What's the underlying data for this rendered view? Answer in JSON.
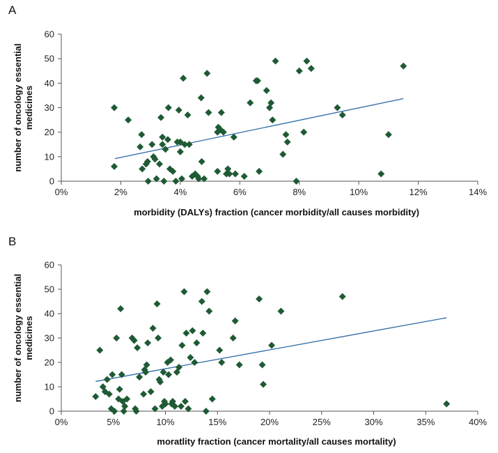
{
  "chart_data": [
    {
      "panel": "A",
      "type": "scatter",
      "xlabel": "morbidity (DALYs) fraction (cancer morbidity/all causes morbidity)",
      "ylabel": [
        "number of oncology essential",
        "medicines"
      ],
      "xlim": [
        0,
        0.14
      ],
      "ylim": [
        0,
        60
      ],
      "xticks": [
        0,
        0.02,
        0.04,
        0.06,
        0.08,
        0.1,
        0.12,
        0.14
      ],
      "xtick_labels": [
        "0%",
        "2%",
        "4%",
        "6%",
        "8%",
        "10%",
        "12%",
        "14%"
      ],
      "yticks": [
        0,
        10,
        20,
        30,
        40,
        50,
        60
      ],
      "ytick_labels": [
        "0",
        "10",
        "20",
        "30",
        "40",
        "50",
        "60"
      ],
      "marker_color": "#1f5a34",
      "trendline_color": "#2d6aa6",
      "trendline": {
        "x": [
          0.018,
          0.115
        ],
        "y": [
          9.2,
          33.7
        ]
      },
      "points": [
        [
          0.0178,
          30
        ],
        [
          0.0178,
          6
        ],
        [
          0.0225,
          25
        ],
        [
          0.0265,
          14
        ],
        [
          0.027,
          19
        ],
        [
          0.0272,
          5
        ],
        [
          0.0285,
          7
        ],
        [
          0.029,
          8
        ],
        [
          0.0292,
          0
        ],
        [
          0.0305,
          15
        ],
        [
          0.031,
          10
        ],
        [
          0.0315,
          9
        ],
        [
          0.032,
          1
        ],
        [
          0.033,
          7
        ],
        [
          0.0335,
          26
        ],
        [
          0.034,
          18
        ],
        [
          0.034,
          15
        ],
        [
          0.0345,
          0
        ],
        [
          0.035,
          13
        ],
        [
          0.0358,
          17
        ],
        [
          0.036,
          30
        ],
        [
          0.0365,
          5
        ],
        [
          0.0375,
          4
        ],
        [
          0.0385,
          0
        ],
        [
          0.039,
          16
        ],
        [
          0.0395,
          29
        ],
        [
          0.04,
          12
        ],
        [
          0.04,
          16
        ],
        [
          0.0405,
          1
        ],
        [
          0.041,
          42
        ],
        [
          0.0415,
          15
        ],
        [
          0.0425,
          27
        ],
        [
          0.043,
          15
        ],
        [
          0.044,
          2
        ],
        [
          0.045,
          3
        ],
        [
          0.0458,
          2
        ],
        [
          0.0462,
          1
        ],
        [
          0.047,
          34
        ],
        [
          0.0472,
          8
        ],
        [
          0.048,
          1
        ],
        [
          0.049,
          44
        ],
        [
          0.0495,
          28
        ],
        [
          0.0525,
          20
        ],
        [
          0.0528,
          22
        ],
        [
          0.0525,
          4
        ],
        [
          0.0535,
          21
        ],
        [
          0.0538,
          28
        ],
        [
          0.0545,
          20
        ],
        [
          0.0555,
          3
        ],
        [
          0.056,
          5
        ],
        [
          0.0565,
          3
        ],
        [
          0.058,
          18
        ],
        [
          0.0585,
          3
        ],
        [
          0.0615,
          2
        ],
        [
          0.0635,
          32
        ],
        [
          0.0655,
          41
        ],
        [
          0.066,
          41
        ],
        [
          0.0665,
          4
        ],
        [
          0.069,
          37
        ],
        [
          0.07,
          30
        ],
        [
          0.0705,
          32
        ],
        [
          0.071,
          25
        ],
        [
          0.072,
          49
        ],
        [
          0.0745,
          11
        ],
        [
          0.0755,
          19
        ],
        [
          0.076,
          16
        ],
        [
          0.079,
          0
        ],
        [
          0.08,
          45
        ],
        [
          0.0815,
          20
        ],
        [
          0.0825,
          49
        ],
        [
          0.084,
          46
        ],
        [
          0.0928,
          30
        ],
        [
          0.0945,
          27
        ],
        [
          0.1075,
          3
        ],
        [
          0.11,
          19
        ],
        [
          0.115,
          47
        ]
      ]
    },
    {
      "panel": "B",
      "type": "scatter",
      "xlabel": "moratlity fraction (cancer mortality/all causes mortality)",
      "ylabel": [
        "number of oncology essential",
        "medicines"
      ],
      "xlim": [
        0,
        0.4
      ],
      "ylim": [
        0,
        60
      ],
      "xticks": [
        0,
        0.05,
        0.1,
        0.15,
        0.2,
        0.25,
        0.3,
        0.35,
        0.4
      ],
      "xtick_labels": [
        "0%",
        "5%",
        "10%",
        "15%",
        "20%",
        "25%",
        "30%",
        "35%",
        "40%"
      ],
      "yticks": [
        0,
        10,
        20,
        30,
        40,
        50,
        60
      ],
      "ytick_labels": [
        "0",
        "10",
        "20",
        "30",
        "40",
        "50",
        "60"
      ],
      "marker_color": "#1f5a34",
      "trendline_color": "#2d6aa6",
      "trendline": {
        "x": [
          0.033,
          0.37
        ],
        "y": [
          12.2,
          38.3
        ]
      },
      "points": [
        [
          0.033,
          6
        ],
        [
          0.037,
          25
        ],
        [
          0.04,
          10
        ],
        [
          0.042,
          8
        ],
        [
          0.044,
          13
        ],
        [
          0.046,
          7
        ],
        [
          0.048,
          1
        ],
        [
          0.049,
          15
        ],
        [
          0.051,
          0
        ],
        [
          0.053,
          30
        ],
        [
          0.055,
          5
        ],
        [
          0.056,
          9
        ],
        [
          0.057,
          42
        ],
        [
          0.058,
          15
        ],
        [
          0.059,
          4
        ],
        [
          0.06,
          0
        ],
        [
          0.061,
          2
        ],
        [
          0.063,
          5
        ],
        [
          0.068,
          30
        ],
        [
          0.07,
          29
        ],
        [
          0.071,
          1
        ],
        [
          0.072,
          0
        ],
        [
          0.073,
          26
        ],
        [
          0.075,
          14
        ],
        [
          0.079,
          7
        ],
        [
          0.08,
          17
        ],
        [
          0.081,
          16
        ],
        [
          0.082,
          19
        ],
        [
          0.083,
          28
        ],
        [
          0.086,
          8
        ],
        [
          0.088,
          34
        ],
        [
          0.09,
          1
        ],
        [
          0.092,
          44
        ],
        [
          0.093,
          30
        ],
        [
          0.094,
          13
        ],
        [
          0.095,
          12
        ],
        [
          0.097,
          2
        ],
        [
          0.098,
          16
        ],
        [
          0.099,
          4
        ],
        [
          0.1,
          3
        ],
        [
          0.102,
          20
        ],
        [
          0.103,
          15
        ],
        [
          0.105,
          21
        ],
        [
          0.106,
          3
        ],
        [
          0.107,
          4
        ],
        [
          0.109,
          2
        ],
        [
          0.111,
          16
        ],
        [
          0.113,
          18
        ],
        [
          0.115,
          2
        ],
        [
          0.116,
          27
        ],
        [
          0.118,
          49
        ],
        [
          0.119,
          4
        ],
        [
          0.12,
          32
        ],
        [
          0.122,
          1
        ],
        [
          0.124,
          22
        ],
        [
          0.126,
          33
        ],
        [
          0.128,
          20
        ],
        [
          0.13,
          28
        ],
        [
          0.135,
          45
        ],
        [
          0.136,
          32
        ],
        [
          0.139,
          0
        ],
        [
          0.14,
          49
        ],
        [
          0.142,
          41
        ],
        [
          0.145,
          5
        ],
        [
          0.152,
          25
        ],
        [
          0.154,
          20
        ],
        [
          0.165,
          30
        ],
        [
          0.167,
          37
        ],
        [
          0.171,
          19
        ],
        [
          0.19,
          46
        ],
        [
          0.193,
          19
        ],
        [
          0.194,
          11
        ],
        [
          0.202,
          27
        ],
        [
          0.211,
          41
        ],
        [
          0.27,
          47
        ],
        [
          0.37,
          3
        ]
      ]
    }
  ],
  "panel_labels": [
    "A",
    "B"
  ]
}
